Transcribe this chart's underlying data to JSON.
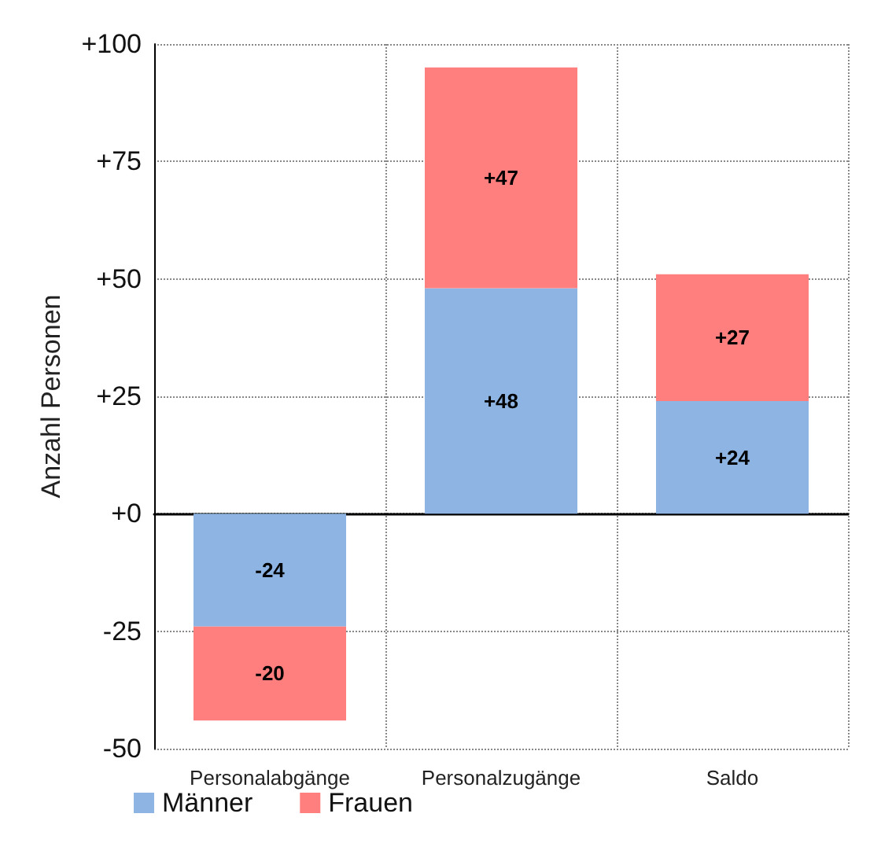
{
  "chart_data": {
    "type": "bar",
    "stacked": true,
    "ylabel": "Anzahl Personen",
    "categories": [
      "Personalabgänge",
      "Personalzugänge",
      "Saldo"
    ],
    "series": [
      {
        "name": "Männer",
        "color": "#8db4e2",
        "values": [
          -24,
          48,
          24
        ],
        "value_labels": [
          "-24",
          "+48",
          "+24"
        ]
      },
      {
        "name": "Frauen",
        "color": "#ff7f7f",
        "values": [
          -20,
          47,
          27
        ],
        "value_labels": [
          "-20",
          "+47",
          "+27"
        ]
      }
    ],
    "ylim": [
      -50,
      100
    ],
    "yticks": [
      -50,
      -25,
      {
        "value": 0,
        "label": "+0"
      },
      {
        "value": 25,
        "label": "+25"
      },
      {
        "value": 50,
        "label": "+50"
      },
      {
        "value": 75,
        "label": "+75"
      },
      {
        "value": 100,
        "label": "+100"
      }
    ],
    "grid": true,
    "legend": "bottom left"
  }
}
